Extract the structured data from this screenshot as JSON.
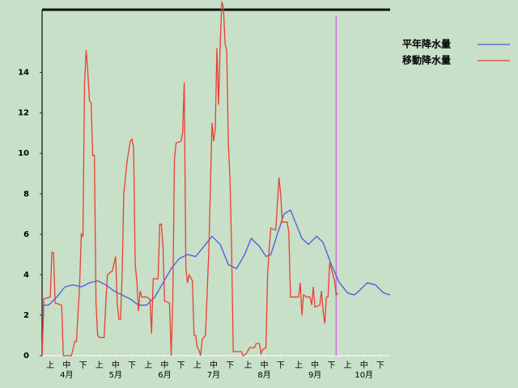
{
  "chart_data": {
    "type": "line",
    "xlim": [
      0,
      213
    ],
    "ylim": [
      0,
      17.1
    ],
    "yticks": [
      0,
      2,
      4,
      6,
      8,
      10,
      12,
      14
    ],
    "xticks": [
      {
        "value": 5,
        "label": "上"
      },
      {
        "value": 15,
        "label": "中"
      },
      {
        "value": 25,
        "label": "下"
      },
      {
        "value": 35,
        "label": "上"
      },
      {
        "value": 45,
        "label": "中"
      },
      {
        "value": 55,
        "label": "下"
      },
      {
        "value": 65,
        "label": "上"
      },
      {
        "value": 75,
        "label": "中"
      },
      {
        "value": 85,
        "label": "下"
      },
      {
        "value": 95,
        "label": "上"
      },
      {
        "value": 105,
        "label": "中"
      },
      {
        "value": 115,
        "label": "下"
      },
      {
        "value": 126,
        "label": "上"
      },
      {
        "value": 136,
        "label": "中"
      },
      {
        "value": 146,
        "label": "下"
      },
      {
        "value": 157,
        "label": "上"
      },
      {
        "value": 167,
        "label": "中"
      },
      {
        "value": 177,
        "label": "下"
      },
      {
        "value": 187,
        "label": "上"
      },
      {
        "value": 197,
        "label": "中"
      },
      {
        "value": 207,
        "label": "下"
      }
    ],
    "month_labels": [
      {
        "value": 15,
        "label": "4月"
      },
      {
        "value": 45,
        "label": "5月"
      },
      {
        "value": 75,
        "label": "6月"
      },
      {
        "value": 105,
        "label": "7月"
      },
      {
        "value": 136,
        "label": "8月"
      },
      {
        "value": 167,
        "label": "9月"
      },
      {
        "value": 197,
        "label": "10月"
      }
    ],
    "marker_x": 180,
    "marker_color": "#d070e0",
    "legend": "right",
    "series": [
      {
        "name": "平年降水量",
        "color": "#4a5ae0",
        "x": [
          0,
          1,
          4,
          9,
          14,
          19,
          24,
          29,
          34,
          39,
          44,
          49,
          54,
          59,
          64,
          69,
          74,
          79,
          84,
          89,
          94,
          99,
          104,
          109,
          114,
          119,
          124,
          128,
          133,
          137,
          140,
          144,
          148,
          152,
          155,
          159,
          163,
          168,
          172,
          177,
          182,
          187,
          191,
          194,
          199,
          204,
          209,
          213
        ],
        "values": [
          0,
          2.5,
          2.5,
          2.9,
          3.4,
          3.5,
          3.4,
          3.6,
          3.7,
          3.5,
          3.2,
          3.0,
          2.8,
          2.5,
          2.5,
          2.9,
          3.6,
          4.3,
          4.8,
          5.0,
          4.9,
          5.4,
          5.9,
          5.5,
          4.5,
          4.3,
          5.0,
          5.8,
          5.4,
          4.9,
          5.0,
          6.0,
          7.0,
          7.2,
          6.6,
          5.8,
          5.5,
          5.9,
          5.6,
          4.5,
          3.6,
          3.1,
          3.0,
          3.2,
          3.6,
          3.5,
          3.1,
          3.0
        ]
      },
      {
        "name": "移動降水量",
        "color": "#e84030",
        "x": [
          0,
          1,
          5,
          6,
          7,
          8,
          12,
          13,
          18,
          20,
          21,
          23,
          24,
          25,
          26,
          27,
          28,
          29,
          30,
          31,
          32,
          33,
          34,
          35,
          38,
          39,
          40,
          43,
          45,
          46,
          47,
          48,
          49,
          50,
          52,
          54,
          55,
          56,
          57,
          58,
          59,
          60,
          61,
          64,
          66,
          67,
          68,
          71,
          72,
          73,
          74,
          75,
          78,
          79,
          80,
          81,
          82,
          85,
          86,
          87,
          88,
          89,
          90,
          92,
          93,
          94,
          95,
          96,
          97,
          98,
          100,
          102,
          104,
          105,
          106,
          107,
          108,
          109,
          110,
          111,
          112,
          113,
          114,
          115,
          116,
          117,
          122,
          123,
          125,
          127,
          130,
          131,
          133,
          134,
          135,
          137,
          138,
          139,
          140,
          143,
          145,
          146,
          147,
          150,
          151,
          152,
          157,
          158,
          159,
          160,
          162,
          164,
          165,
          166,
          167,
          170,
          171,
          172,
          173,
          174,
          175,
          176,
          177,
          179,
          180,
          181
        ],
        "values": [
          0,
          2.8,
          2.9,
          5.1,
          5.1,
          2.6,
          2.5,
          0,
          0,
          0.7,
          0.7,
          3.5,
          6,
          5.9,
          13.5,
          15.1,
          14,
          12.6,
          12.5,
          9.9,
          9.9,
          2.6,
          1,
          0.9,
          0.9,
          2.6,
          4,
          4.2,
          4.9,
          2.6,
          1.8,
          1.8,
          4,
          8,
          9.6,
          10.6,
          10.7,
          10.3,
          4.5,
          3.7,
          2.2,
          3.2,
          2.9,
          2.9,
          2.8,
          1.1,
          3.8,
          3.8,
          6.5,
          6.5,
          5.4,
          2.7,
          2.6,
          0,
          2.7,
          9.7,
          10.5,
          10.6,
          11,
          13.5,
          4.3,
          3.6,
          4,
          3.7,
          1,
          1,
          0.4,
          0.3,
          0,
          0.8,
          1,
          5.1,
          11.5,
          10.6,
          11.2,
          15.2,
          12.4,
          15.4,
          17.5,
          17.2,
          15.4,
          15.1,
          10.5,
          8.7,
          5.2,
          0.2,
          0.2,
          0,
          0.1,
          0.4,
          0.4,
          0.6,
          0.6,
          0.1,
          0.3,
          0.4,
          4,
          5.3,
          6.3,
          6.2,
          8.8,
          8,
          6.6,
          6.6,
          6.1,
          2.9,
          2.9,
          3.6,
          2,
          3,
          2.9,
          2.9,
          2.5,
          3.4,
          2.4,
          2.5,
          3.2,
          2.2,
          1.6,
          2.9,
          2.9,
          4.6,
          4.3,
          3.7,
          3,
          3.1
        ]
      }
    ]
  }
}
